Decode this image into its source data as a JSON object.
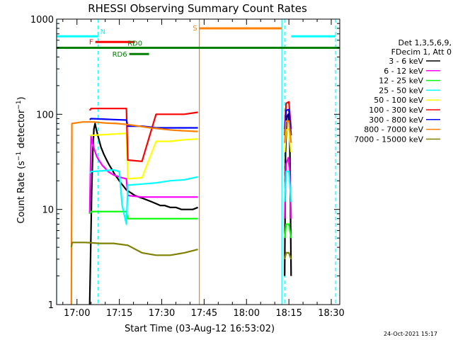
{
  "chart_data": {
    "type": "line",
    "title": "RHESSI Observing Summary Count Rates",
    "xlabel": "Start Time (03-Aug-12 16:53:02)",
    "ylabel": "Count Rate (s⁻¹ detector⁻¹)",
    "ylabel_parts": [
      "Count Rate (s",
      "−1",
      " detector",
      "−1",
      ")"
    ],
    "x_unit": "minutes since 16:53:02",
    "xlim": [
      -0.2,
      100
    ],
    "ylim": [
      1,
      1000
    ],
    "yscale": "log",
    "x_ticks": [
      {
        "label": "17:00",
        "x": 7
      },
      {
        "label": "17:15",
        "x": 22
      },
      {
        "label": "17:30",
        "x": 37
      },
      {
        "label": "17:45",
        "x": 52
      },
      {
        "label": "18:00",
        "x": 67
      },
      {
        "label": "18:15",
        "x": 82
      },
      {
        "label": "18:30",
        "x": 97
      }
    ],
    "y_ticks": [
      {
        "label": "1",
        "y": 1
      },
      {
        "label": "10",
        "y": 10
      },
      {
        "label": "100",
        "y": 100
      },
      {
        "label": "1000",
        "y": 1000
      }
    ],
    "legend": {
      "header": [
        "Det 1,3,5,6,9,",
        "FDecim 1, Att 0"
      ],
      "placement": "right"
    },
    "series": [
      {
        "name": "3 - 6 keV",
        "color": "#000000",
        "segments": [
          [
            [
              11.5,
              1
            ],
            [
              11.8,
              3
            ],
            [
              12.2,
              15
            ],
            [
              12.6,
              40
            ],
            [
              13.0,
              70
            ],
            [
              13.4,
              80
            ],
            [
              13.8,
              70
            ],
            [
              14.5,
              58
            ],
            [
              15.5,
              45
            ],
            [
              16.5,
              38
            ],
            [
              17.5,
              33
            ],
            [
              18.5,
              29
            ],
            [
              19.5,
              26
            ],
            [
              20.5,
              23
            ],
            [
              21.5,
              21
            ],
            [
              22.5,
              19
            ],
            [
              23.5,
              17.5
            ],
            [
              24.5,
              16
            ],
            [
              26,
              15
            ],
            [
              27.5,
              14
            ],
            [
              29,
              13.5
            ],
            [
              30.5,
              13
            ],
            [
              32,
              12.5
            ],
            [
              33.5,
              12
            ],
            [
              35,
              11.5
            ],
            [
              36.5,
              11
            ],
            [
              38,
              11
            ],
            [
              40,
              10.5
            ],
            [
              42,
              10.5
            ],
            [
              44,
              10
            ],
            [
              46,
              10
            ],
            [
              48,
              10
            ],
            [
              49.8,
              10.5
            ]
          ],
          [
            [
              80.5,
              2
            ],
            [
              80.8,
              40
            ],
            [
              81.3,
              95
            ],
            [
              81.8,
              100
            ],
            [
              82.3,
              70
            ],
            [
              82.8,
              2
            ]
          ]
        ]
      },
      {
        "name": "6 - 12 keV",
        "color": "#ff00ff",
        "segments": [
          [
            [
              11.5,
              9
            ],
            [
              12.0,
              60
            ],
            [
              12.5,
              50
            ],
            [
              13.2,
              42
            ],
            [
              14,
              36
            ],
            [
              15,
              32
            ],
            [
              16,
              29
            ],
            [
              17,
              27
            ],
            [
              18,
              25
            ],
            [
              19,
              24
            ],
            [
              20,
              23
            ],
            [
              21,
              22.5
            ],
            [
              22,
              22
            ],
            [
              23,
              21.5
            ],
            [
              24.5,
              21
            ],
            [
              25,
              14
            ],
            [
              30,
              13.5
            ],
            [
              35,
              13.5
            ],
            [
              40,
              13.5
            ],
            [
              45,
              13.5
            ],
            [
              49.8,
              13.5
            ]
          ],
          [
            [
              80.5,
              8
            ],
            [
              81.0,
              30
            ],
            [
              81.8,
              35
            ],
            [
              82.3,
              25
            ],
            [
              82.8,
              8
            ]
          ]
        ]
      },
      {
        "name": "12 - 25 keV",
        "color": "#00ff00",
        "segments": [
          [
            [
              11.5,
              9
            ],
            [
              12,
              9.5
            ],
            [
              16,
              9.5
            ],
            [
              20,
              9.5
            ],
            [
              24.5,
              9.5
            ],
            [
              25,
              8
            ],
            [
              30,
              8
            ],
            [
              35,
              8
            ],
            [
              40,
              8
            ],
            [
              45,
              8
            ],
            [
              49.8,
              8
            ]
          ],
          [
            [
              80.5,
              5
            ],
            [
              81,
              7
            ],
            [
              82,
              7
            ],
            [
              82.8,
              5
            ]
          ]
        ]
      },
      {
        "name": "25 - 50 keV",
        "color": "#00ffff",
        "segments": [
          [
            [
              11.5,
              24
            ],
            [
              12,
              25
            ],
            [
              16,
              25.5
            ],
            [
              20,
              26
            ],
            [
              22,
              25
            ],
            [
              23,
              11
            ],
            [
              24.5,
              7
            ],
            [
              25,
              18
            ],
            [
              30,
              18.5
            ],
            [
              35,
              19
            ],
            [
              40,
              20
            ],
            [
              45,
              20.5
            ],
            [
              49.8,
              22
            ]
          ],
          [
            [
              80.5,
              12
            ],
            [
              81,
              25
            ],
            [
              82,
              25
            ],
            [
              82.8,
              12
            ]
          ]
        ]
      },
      {
        "name": "50 - 100 keV",
        "color": "#ffff00",
        "segments": [
          [
            [
              11.5,
              60
            ],
            [
              12,
              60
            ],
            [
              16,
              61
            ],
            [
              20,
              62
            ],
            [
              24.5,
              63
            ],
            [
              25,
              21
            ],
            [
              30,
              21.5
            ],
            [
              35,
              52
            ],
            [
              40,
              52
            ],
            [
              45,
              54
            ],
            [
              49.8,
              55
            ]
          ],
          [
            [
              80.5,
              40
            ],
            [
              81,
              68
            ],
            [
              82,
              70
            ],
            [
              82.8,
              40
            ]
          ]
        ]
      },
      {
        "name": "100 - 300 keV",
        "color": "#ff0000",
        "segments": [
          [
            [
              11.5,
              110
            ],
            [
              12,
              115
            ],
            [
              16,
              115
            ],
            [
              20,
              115
            ],
            [
              24.5,
              115
            ],
            [
              25,
              33
            ],
            [
              30,
              32
            ],
            [
              35,
              100
            ],
            [
              40,
              100
            ],
            [
              45,
              100
            ],
            [
              49.8,
              105
            ]
          ],
          [
            [
              80.5,
              70
            ],
            [
              81,
              130
            ],
            [
              82,
              135
            ],
            [
              82.8,
              70
            ]
          ]
        ]
      },
      {
        "name": "300 - 800 keV",
        "color": "#0000ff",
        "segments": [
          [
            [
              11.5,
              88
            ],
            [
              12,
              90
            ],
            [
              16,
              89
            ],
            [
              20,
              88
            ],
            [
              24.5,
              87
            ],
            [
              25,
              75
            ],
            [
              30,
              75
            ],
            [
              35,
              72
            ],
            [
              40,
              72
            ],
            [
              45,
              72
            ],
            [
              49.8,
              72
            ]
          ],
          [
            [
              80.5,
              60
            ],
            [
              81,
              110
            ],
            [
              82,
              112
            ],
            [
              82.8,
              60
            ]
          ]
        ]
      },
      {
        "name": "800 - 7000 keV",
        "color": "#ff8000",
        "segments": [
          [
            [
              5,
              1
            ],
            [
              5.2,
              80
            ],
            [
              9,
              83
            ],
            [
              13,
              83
            ],
            [
              17,
              81
            ],
            [
              21,
              80
            ],
            [
              25,
              78
            ],
            [
              29,
              75
            ],
            [
              33,
              72
            ],
            [
              37,
              70
            ],
            [
              41,
              68
            ],
            [
              45,
              67
            ],
            [
              49.8,
              66
            ]
          ],
          [
            [
              80.5,
              50
            ],
            [
              81,
              85
            ],
            [
              82,
              85
            ],
            [
              82.8,
              50
            ]
          ]
        ]
      },
      {
        "name": "7000 - 15000 keV",
        "color": "#808000",
        "segments": [
          [
            [
              5,
              4
            ],
            [
              5.3,
              4.5
            ],
            [
              10,
              4.5
            ],
            [
              15,
              4.4
            ],
            [
              20,
              4.4
            ],
            [
              25,
              4.2
            ],
            [
              30,
              3.5
            ],
            [
              35,
              3.3
            ],
            [
              40,
              3.3
            ],
            [
              45,
              3.5
            ],
            [
              49.8,
              3.8
            ]
          ],
          [
            [
              80.5,
              3
            ],
            [
              81,
              3.5
            ],
            [
              82,
              3.5
            ],
            [
              82.8,
              3
            ]
          ]
        ]
      }
    ],
    "flags": [
      {
        "label": "N",
        "color": "#00ffff",
        "spans": [
          [
            -0.2,
            14.5
          ],
          [
            82.8,
            98.5
          ]
        ],
        "y": 660
      },
      {
        "label": "S",
        "color": "#ff8000",
        "spans": [
          [
            50.3,
            79.5
          ]
        ],
        "y": 800
      },
      {
        "label": "F",
        "color": "#ff0000",
        "spans": [
          [
            13.5,
            27.5
          ]
        ],
        "y": 575
      },
      {
        "label": "RD0",
        "color": "#008000",
        "spans": [
          [
            -0.2,
            100
          ]
        ],
        "y": 500
      },
      {
        "label": "RD6",
        "color": "#008000",
        "spans": [
          [
            25.5,
            32.5
          ]
        ],
        "y": 430
      }
    ],
    "vlines": [
      {
        "x": -0.2,
        "color": "#00ffff",
        "style": "solid"
      },
      {
        "x": 14.5,
        "color": "#00ffff",
        "style": "dashed"
      },
      {
        "x": 50.3,
        "color": "#ff8000",
        "style": "solid"
      },
      {
        "x": 79.5,
        "color": "#00ffff",
        "style": "solid"
      },
      {
        "x": 80.5,
        "color": "#00ffff",
        "style": "dashed"
      },
      {
        "x": 98.5,
        "color": "#00ffff",
        "style": "dashed"
      }
    ]
  },
  "timestamp": "24-Oct-2021 15:17"
}
